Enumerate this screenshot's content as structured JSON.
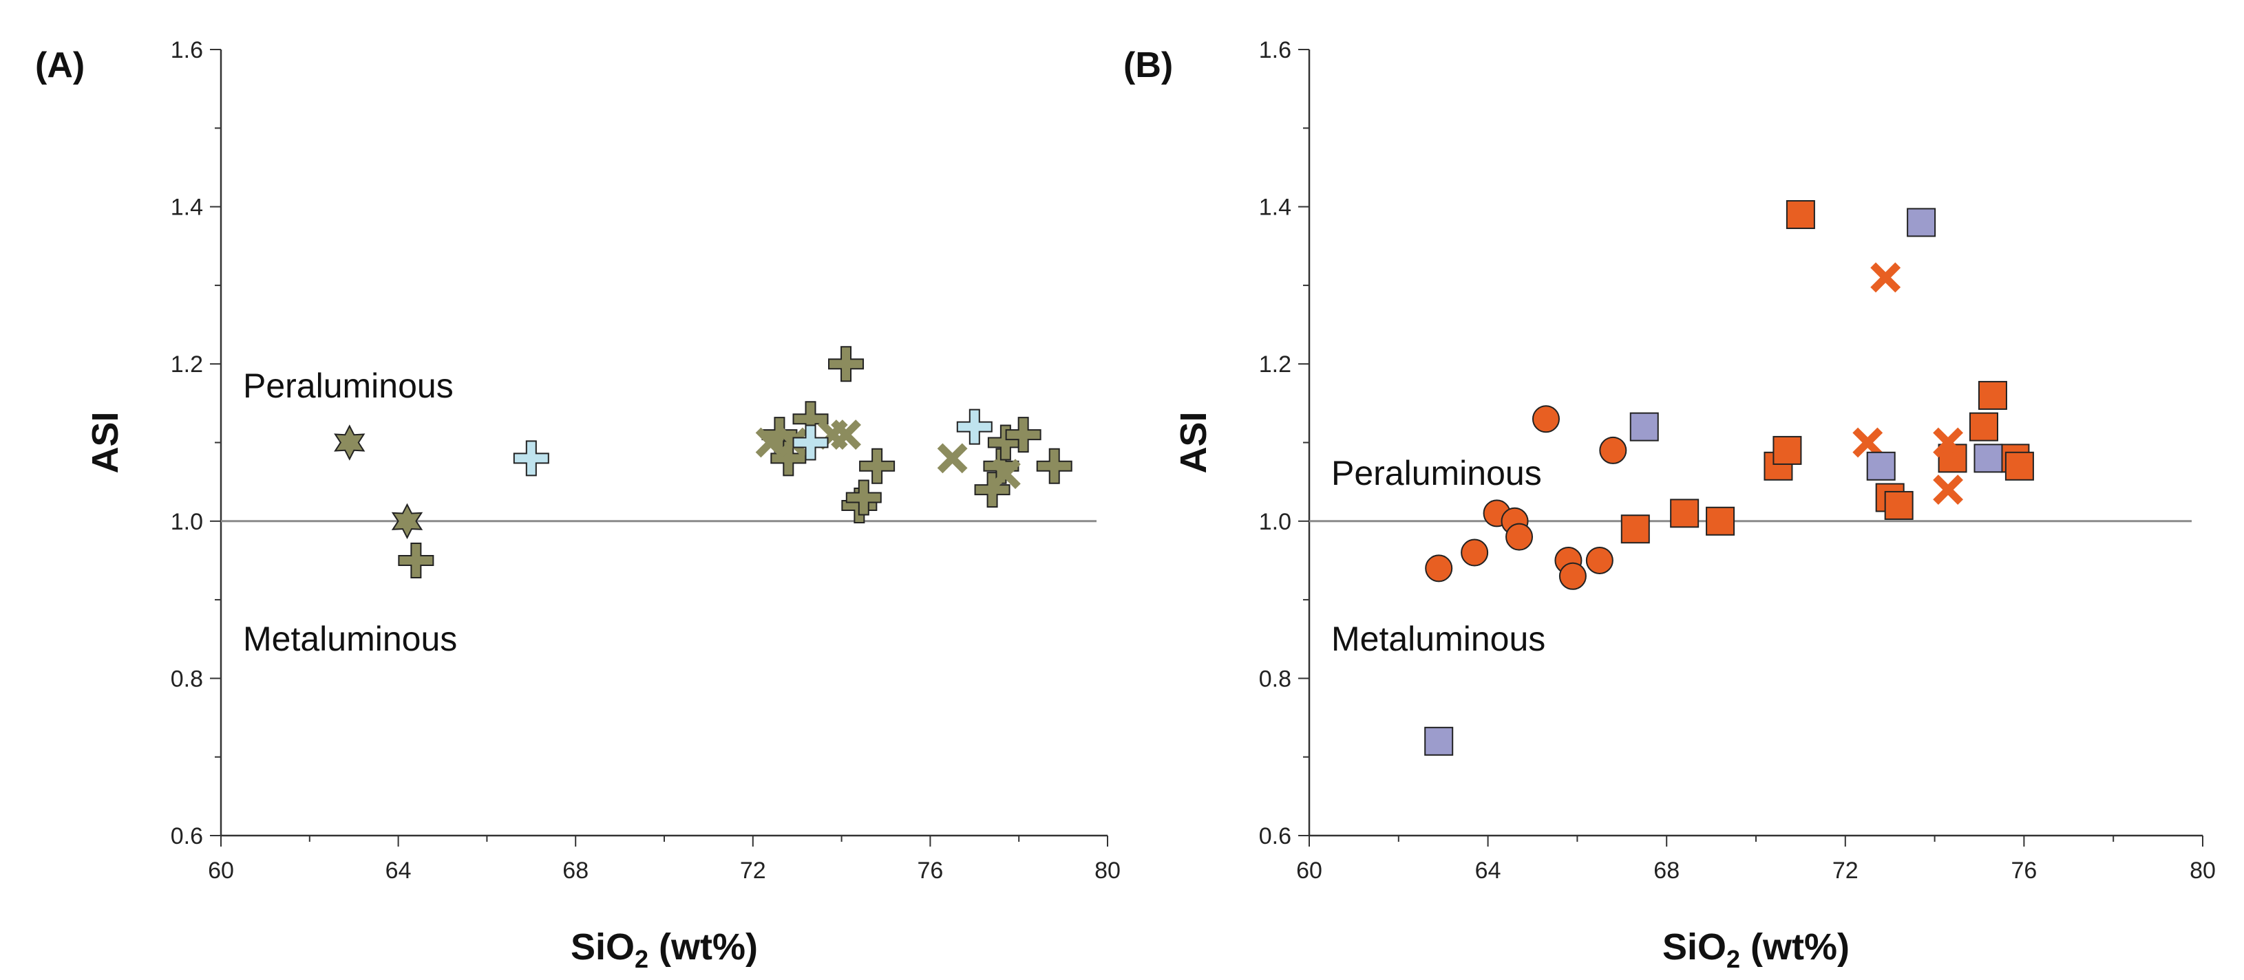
{
  "colors": {
    "olive": "#8c8c5e",
    "light_blue": "#bfe3ee",
    "orange": "#e85f22",
    "lavender": "#9c9ccc",
    "stroke": "#222222",
    "ref_line": "#8a8a8a"
  },
  "chart_data": [
    {
      "type": "scatter",
      "panel_label": "(A)",
      "xlabel": "SiO2 (wt%)",
      "ylabel": "ASI",
      "xlim": [
        60,
        80
      ],
      "ylim": [
        0.6,
        1.6
      ],
      "x_ticks": [
        "60",
        "64",
        "68",
        "72",
        "76",
        "80"
      ],
      "y_ticks": [
        "0.6",
        "0.8",
        "1.0",
        "1.2",
        "1.4",
        "1.6"
      ],
      "reference_line": 1.0,
      "region_labels": {
        "upper": "Peraluminous",
        "lower": "Metaluminous"
      },
      "series": [
        {
          "name": "olive star",
          "marker": "star",
          "color": "olive",
          "points": [
            [
              62.9,
              1.1
            ],
            [
              64.2,
              1.0
            ]
          ]
        },
        {
          "name": "olive cross",
          "marker": "plus",
          "color": "olive",
          "points": [
            [
              64.4,
              0.95
            ],
            [
              72.6,
              1.11
            ],
            [
              72.8,
              1.08
            ],
            [
              73.3,
              1.13
            ],
            [
              74.1,
              1.2
            ],
            [
              74.4,
              1.02
            ],
            [
              74.5,
              1.03
            ],
            [
              74.8,
              1.07
            ],
            [
              77.4,
              1.04
            ],
            [
              77.6,
              1.07
            ],
            [
              77.7,
              1.1
            ],
            [
              78.1,
              1.11
            ],
            [
              78.8,
              1.07
            ]
          ]
        },
        {
          "name": "olive x",
          "marker": "x",
          "color": "olive",
          "points": [
            [
              72.4,
              1.1
            ],
            [
              72.9,
              1.1
            ],
            [
              73.8,
              1.11
            ],
            [
              74.1,
              1.11
            ],
            [
              76.5,
              1.08
            ],
            [
              77.7,
              1.06
            ]
          ]
        },
        {
          "name": "light blue cross",
          "marker": "plus",
          "color": "light_blue",
          "points": [
            [
              67.0,
              1.08
            ],
            [
              73.3,
              1.1
            ],
            [
              77.0,
              1.12
            ]
          ]
        }
      ]
    },
    {
      "type": "scatter",
      "panel_label": "(B)",
      "xlabel": "SiO2 (wt%)",
      "ylabel": "ASI",
      "xlim": [
        60,
        80
      ],
      "ylim": [
        0.6,
        1.6
      ],
      "x_ticks": [
        "60",
        "64",
        "68",
        "72",
        "76",
        "80"
      ],
      "y_ticks": [
        "0.6",
        "0.8",
        "1.0",
        "1.2",
        "1.4",
        "1.6"
      ],
      "reference_line": 1.0,
      "region_labels": {
        "upper": "Peraluminous",
        "lower": "Metaluminous"
      },
      "series": [
        {
          "name": "orange circle",
          "marker": "circle",
          "color": "orange",
          "points": [
            [
              62.9,
              0.94
            ],
            [
              63.7,
              0.96
            ],
            [
              64.2,
              1.01
            ],
            [
              64.6,
              1.0
            ],
            [
              64.7,
              0.98
            ],
            [
              65.3,
              1.13
            ],
            [
              65.8,
              0.95
            ],
            [
              65.9,
              0.93
            ],
            [
              66.5,
              0.95
            ],
            [
              66.8,
              1.09
            ]
          ]
        },
        {
          "name": "orange square",
          "marker": "square",
          "color": "orange",
          "points": [
            [
              67.3,
              0.99
            ],
            [
              68.4,
              1.01
            ],
            [
              69.2,
              1.0
            ],
            [
              70.5,
              1.07
            ],
            [
              70.7,
              1.09
            ],
            [
              71.0,
              1.39
            ],
            [
              73.0,
              1.03
            ],
            [
              73.2,
              1.02
            ],
            [
              74.4,
              1.08
            ],
            [
              75.1,
              1.12
            ],
            [
              75.3,
              1.16
            ],
            [
              75.8,
              1.08
            ],
            [
              75.9,
              1.07
            ]
          ]
        },
        {
          "name": "orange x",
          "marker": "x",
          "color": "orange",
          "points": [
            [
              72.9,
              1.31
            ],
            [
              72.5,
              1.1
            ],
            [
              74.3,
              1.1
            ],
            [
              74.3,
              1.04
            ]
          ]
        },
        {
          "name": "lavender square",
          "marker": "square",
          "color": "lavender",
          "points": [
            [
              62.9,
              0.72
            ],
            [
              67.5,
              1.12
            ],
            [
              72.8,
              1.07
            ],
            [
              73.7,
              1.38
            ],
            [
              75.2,
              1.08
            ]
          ]
        }
      ]
    }
  ]
}
